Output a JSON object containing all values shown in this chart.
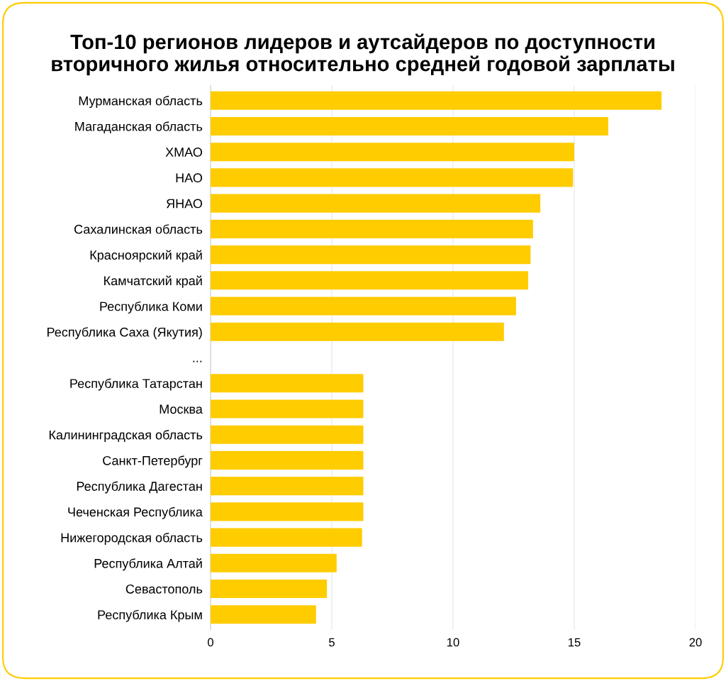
{
  "chart_data": {
    "type": "bar",
    "orientation": "horizontal",
    "title": "Топ-10 регионов лидеров и аутсайдеров по доступности\nвторичного жилья относительно средней годовой зарплаты",
    "categories": [
      "Мурманская область",
      "Магаданская область",
      "ХМАО",
      "НАО",
      "ЯНАО",
      "Сахалинская область",
      "Красноярский край",
      "Камчатский край",
      "Республика Коми",
      "Республика Саха (Якутия)",
      "...",
      "Республика Татарстан",
      "Москва",
      "Калининградская область",
      "Санкт-Петербург",
      "Республика Дагестан",
      "Чеченская Республика",
      "Нижегородская область",
      "Республика Алтай",
      "Севастополь",
      "Республика Крым"
    ],
    "values": [
      18.6,
      16.4,
      15.0,
      14.95,
      13.6,
      13.3,
      13.2,
      13.1,
      12.6,
      12.1,
      null,
      6.3,
      6.3,
      6.3,
      6.3,
      6.3,
      6.3,
      6.25,
      5.2,
      4.8,
      4.35
    ],
    "color": "#ffcc00",
    "xlim": [
      0,
      20
    ],
    "xticks": [
      0,
      5,
      10,
      15,
      20
    ],
    "grid": "x",
    "legend": false
  }
}
